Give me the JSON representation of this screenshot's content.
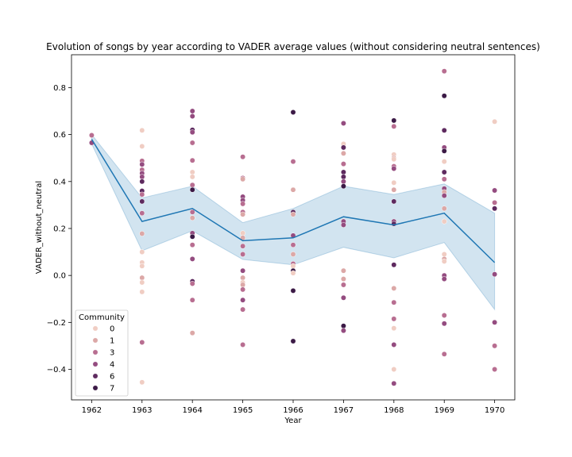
{
  "chart_data": {
    "type": "scatter",
    "title": "Evolution of songs by year according to VADER average values (without considering neutral sentences)",
    "xlabel": "Year",
    "ylabel": "VADER_without_neutral",
    "x_ticks": [
      1962,
      1963,
      1964,
      1965,
      1966,
      1967,
      1968,
      1969,
      1970
    ],
    "y_ticks": [
      -0.4,
      -0.2,
      0.0,
      0.2,
      0.4,
      0.6,
      0.8
    ],
    "y_tick_labels": [
      "−0.4",
      "−0.2",
      "0.0",
      "0.2",
      "0.4",
      "0.6",
      "0.8"
    ],
    "xlim": [
      1961.6,
      1970.4
    ],
    "ylim": [
      -0.53,
      0.94
    ],
    "grid": false,
    "legend": {
      "title": "Community",
      "placement": "lower-left",
      "entries": [
        {
          "label": "0",
          "color": "#f0cdc3"
        },
        {
          "label": "1",
          "color": "#dca8a7"
        },
        {
          "label": "3",
          "color": "#b86e91"
        },
        {
          "label": "4",
          "color": "#944c80"
        },
        {
          "label": "6",
          "color": "#5e2a5f"
        },
        {
          "label": "7",
          "color": "#3c1a46"
        }
      ]
    },
    "mean_line": {
      "color": "#1f77b4",
      "x": [
        1962,
        1963,
        1964,
        1965,
        1966,
        1967,
        1968,
        1969,
        1970
      ],
      "y": [
        0.58,
        0.23,
        0.285,
        0.148,
        0.16,
        0.25,
        0.215,
        0.265,
        0.055
      ]
    },
    "confidence_band": {
      "color": "#1f77b4",
      "x": [
        1962,
        1963,
        1964,
        1965,
        1966,
        1967,
        1968,
        1969,
        1970
      ],
      "lower": [
        0.56,
        0.105,
        0.19,
        0.068,
        0.045,
        0.12,
        0.075,
        0.14,
        -0.145
      ],
      "upper": [
        0.6,
        0.33,
        0.38,
        0.225,
        0.285,
        0.38,
        0.345,
        0.39,
        0.265
      ]
    },
    "points": [
      {
        "x": 1962,
        "y": 0.597,
        "c": "3"
      },
      {
        "x": 1962,
        "y": 0.565,
        "c": "4"
      },
      {
        "x": 1963,
        "y": 0.618,
        "c": "0"
      },
      {
        "x": 1963,
        "y": 0.55,
        "c": "0"
      },
      {
        "x": 1963,
        "y": 0.488,
        "c": "3"
      },
      {
        "x": 1963,
        "y": 0.473,
        "c": "4"
      },
      {
        "x": 1963,
        "y": 0.45,
        "c": "3"
      },
      {
        "x": 1963,
        "y": 0.435,
        "c": "4"
      },
      {
        "x": 1963,
        "y": 0.42,
        "c": "4"
      },
      {
        "x": 1963,
        "y": 0.4,
        "c": "6"
      },
      {
        "x": 1963,
        "y": 0.36,
        "c": "6"
      },
      {
        "x": 1963,
        "y": 0.345,
        "c": "3"
      },
      {
        "x": 1963,
        "y": 0.315,
        "c": "6"
      },
      {
        "x": 1963,
        "y": 0.265,
        "c": "3"
      },
      {
        "x": 1963,
        "y": 0.178,
        "c": "1"
      },
      {
        "x": 1963,
        "y": 0.1,
        "c": "0"
      },
      {
        "x": 1963,
        "y": 0.055,
        "c": "0"
      },
      {
        "x": 1963,
        "y": 0.04,
        "c": "0"
      },
      {
        "x": 1963,
        "y": -0.01,
        "c": "1"
      },
      {
        "x": 1963,
        "y": -0.03,
        "c": "0"
      },
      {
        "x": 1963,
        "y": -0.07,
        "c": "0"
      },
      {
        "x": 1963,
        "y": -0.285,
        "c": "3"
      },
      {
        "x": 1963,
        "y": -0.455,
        "c": "0"
      },
      {
        "x": 1964,
        "y": 0.7,
        "c": "4"
      },
      {
        "x": 1964,
        "y": 0.678,
        "c": "4"
      },
      {
        "x": 1964,
        "y": 0.62,
        "c": "6"
      },
      {
        "x": 1964,
        "y": 0.61,
        "c": "4"
      },
      {
        "x": 1964,
        "y": 0.565,
        "c": "3"
      },
      {
        "x": 1964,
        "y": 0.49,
        "c": "3"
      },
      {
        "x": 1964,
        "y": 0.44,
        "c": "0"
      },
      {
        "x": 1964,
        "y": 0.42,
        "c": "0"
      },
      {
        "x": 1964,
        "y": 0.385,
        "c": "3"
      },
      {
        "x": 1964,
        "y": 0.365,
        "c": "7"
      },
      {
        "x": 1964,
        "y": 0.27,
        "c": "3"
      },
      {
        "x": 1964,
        "y": 0.245,
        "c": "1"
      },
      {
        "x": 1964,
        "y": 0.18,
        "c": "4"
      },
      {
        "x": 1964,
        "y": 0.165,
        "c": "7"
      },
      {
        "x": 1964,
        "y": 0.13,
        "c": "3"
      },
      {
        "x": 1964,
        "y": 0.07,
        "c": "4"
      },
      {
        "x": 1964,
        "y": -0.025,
        "c": "6"
      },
      {
        "x": 1964,
        "y": -0.035,
        "c": "3"
      },
      {
        "x": 1964,
        "y": -0.105,
        "c": "3"
      },
      {
        "x": 1964,
        "y": -0.245,
        "c": "1"
      },
      {
        "x": 1965,
        "y": 0.505,
        "c": "3"
      },
      {
        "x": 1965,
        "y": 0.415,
        "c": "3"
      },
      {
        "x": 1965,
        "y": 0.41,
        "c": "1"
      },
      {
        "x": 1965,
        "y": 0.335,
        "c": "4"
      },
      {
        "x": 1965,
        "y": 0.32,
        "c": "4"
      },
      {
        "x": 1965,
        "y": 0.305,
        "c": "3"
      },
      {
        "x": 1965,
        "y": 0.27,
        "c": "3"
      },
      {
        "x": 1965,
        "y": 0.26,
        "c": "1"
      },
      {
        "x": 1965,
        "y": 0.18,
        "c": "0"
      },
      {
        "x": 1965,
        "y": 0.16,
        "c": "1"
      },
      {
        "x": 1965,
        "y": 0.125,
        "c": "3"
      },
      {
        "x": 1965,
        "y": 0.09,
        "c": "3"
      },
      {
        "x": 1965,
        "y": 0.02,
        "c": "4"
      },
      {
        "x": 1965,
        "y": -0.01,
        "c": "1"
      },
      {
        "x": 1965,
        "y": -0.03,
        "c": "0"
      },
      {
        "x": 1965,
        "y": -0.04,
        "c": "1"
      },
      {
        "x": 1965,
        "y": -0.06,
        "c": "3"
      },
      {
        "x": 1965,
        "y": -0.105,
        "c": "4"
      },
      {
        "x": 1965,
        "y": -0.145,
        "c": "3"
      },
      {
        "x": 1965,
        "y": -0.295,
        "c": "3"
      },
      {
        "x": 1966,
        "y": 0.695,
        "c": "7"
      },
      {
        "x": 1966,
        "y": 0.485,
        "c": "3"
      },
      {
        "x": 1966,
        "y": 0.365,
        "c": "1"
      },
      {
        "x": 1966,
        "y": 0.27,
        "c": "6"
      },
      {
        "x": 1966,
        "y": 0.26,
        "c": "1"
      },
      {
        "x": 1966,
        "y": 0.17,
        "c": "4"
      },
      {
        "x": 1966,
        "y": 0.13,
        "c": "3"
      },
      {
        "x": 1966,
        "y": 0.09,
        "c": "1"
      },
      {
        "x": 1966,
        "y": 0.05,
        "c": "3"
      },
      {
        "x": 1966,
        "y": 0.04,
        "c": "0"
      },
      {
        "x": 1966,
        "y": 0.02,
        "c": "7"
      },
      {
        "x": 1966,
        "y": 0.01,
        "c": "0"
      },
      {
        "x": 1966,
        "y": -0.065,
        "c": "7"
      },
      {
        "x": 1966,
        "y": -0.28,
        "c": "7"
      },
      {
        "x": 1967,
        "y": 0.648,
        "c": "4"
      },
      {
        "x": 1967,
        "y": 0.56,
        "c": "0"
      },
      {
        "x": 1967,
        "y": 0.545,
        "c": "6"
      },
      {
        "x": 1967,
        "y": 0.52,
        "c": "1"
      },
      {
        "x": 1967,
        "y": 0.475,
        "c": "3"
      },
      {
        "x": 1967,
        "y": 0.44,
        "c": "6"
      },
      {
        "x": 1967,
        "y": 0.42,
        "c": "6"
      },
      {
        "x": 1967,
        "y": 0.4,
        "c": "4"
      },
      {
        "x": 1967,
        "y": 0.38,
        "c": "7"
      },
      {
        "x": 1967,
        "y": 0.23,
        "c": "4"
      },
      {
        "x": 1967,
        "y": 0.215,
        "c": "4"
      },
      {
        "x": 1967,
        "y": 0.02,
        "c": "1"
      },
      {
        "x": 1967,
        "y": -0.015,
        "c": "1"
      },
      {
        "x": 1967,
        "y": -0.04,
        "c": "3"
      },
      {
        "x": 1967,
        "y": -0.095,
        "c": "4"
      },
      {
        "x": 1967,
        "y": -0.215,
        "c": "7"
      },
      {
        "x": 1967,
        "y": -0.235,
        "c": "4"
      },
      {
        "x": 1968,
        "y": 0.66,
        "c": "7"
      },
      {
        "x": 1968,
        "y": 0.635,
        "c": "3"
      },
      {
        "x": 1968,
        "y": 0.515,
        "c": "0"
      },
      {
        "x": 1968,
        "y": 0.5,
        "c": "1"
      },
      {
        "x": 1968,
        "y": 0.495,
        "c": "0"
      },
      {
        "x": 1968,
        "y": 0.465,
        "c": "3"
      },
      {
        "x": 1968,
        "y": 0.455,
        "c": "4"
      },
      {
        "x": 1968,
        "y": 0.395,
        "c": "0"
      },
      {
        "x": 1968,
        "y": 0.365,
        "c": "1"
      },
      {
        "x": 1968,
        "y": 0.315,
        "c": "6"
      },
      {
        "x": 1968,
        "y": 0.23,
        "c": "4"
      },
      {
        "x": 1968,
        "y": 0.22,
        "c": "6"
      },
      {
        "x": 1968,
        "y": 0.045,
        "c": "6"
      },
      {
        "x": 1968,
        "y": -0.055,
        "c": "1"
      },
      {
        "x": 1968,
        "y": -0.115,
        "c": "3"
      },
      {
        "x": 1968,
        "y": -0.185,
        "c": "3"
      },
      {
        "x": 1968,
        "y": -0.225,
        "c": "0"
      },
      {
        "x": 1968,
        "y": -0.295,
        "c": "4"
      },
      {
        "x": 1968,
        "y": -0.4,
        "c": "0"
      },
      {
        "x": 1968,
        "y": -0.46,
        "c": "4"
      },
      {
        "x": 1969,
        "y": 0.87,
        "c": "3"
      },
      {
        "x": 1969,
        "y": 0.765,
        "c": "7"
      },
      {
        "x": 1969,
        "y": 0.618,
        "c": "6"
      },
      {
        "x": 1969,
        "y": 0.545,
        "c": "4"
      },
      {
        "x": 1969,
        "y": 0.53,
        "c": "7"
      },
      {
        "x": 1969,
        "y": 0.485,
        "c": "0"
      },
      {
        "x": 1969,
        "y": 0.44,
        "c": "6"
      },
      {
        "x": 1969,
        "y": 0.41,
        "c": "3"
      },
      {
        "x": 1969,
        "y": 0.37,
        "c": "4"
      },
      {
        "x": 1969,
        "y": 0.355,
        "c": "1"
      },
      {
        "x": 1969,
        "y": 0.34,
        "c": "4"
      },
      {
        "x": 1969,
        "y": 0.285,
        "c": "1"
      },
      {
        "x": 1969,
        "y": 0.23,
        "c": "0"
      },
      {
        "x": 1969,
        "y": 0.09,
        "c": "0"
      },
      {
        "x": 1969,
        "y": 0.07,
        "c": "1"
      },
      {
        "x": 1969,
        "y": 0.06,
        "c": "0"
      },
      {
        "x": 1969,
        "y": 0.0,
        "c": "4"
      },
      {
        "x": 1969,
        "y": -0.015,
        "c": "4"
      },
      {
        "x": 1969,
        "y": -0.17,
        "c": "3"
      },
      {
        "x": 1969,
        "y": -0.205,
        "c": "4"
      },
      {
        "x": 1969,
        "y": -0.335,
        "c": "3"
      },
      {
        "x": 1970,
        "y": 0.655,
        "c": "0"
      },
      {
        "x": 1970,
        "y": 0.362,
        "c": "4"
      },
      {
        "x": 1970,
        "y": 0.31,
        "c": "3"
      },
      {
        "x": 1970,
        "y": 0.285,
        "c": "6"
      },
      {
        "x": 1970,
        "y": 0.005,
        "c": "4"
      },
      {
        "x": 1970,
        "y": -0.2,
        "c": "4"
      },
      {
        "x": 1970,
        "y": -0.3,
        "c": "3"
      },
      {
        "x": 1970,
        "y": -0.4,
        "c": "3"
      }
    ]
  }
}
